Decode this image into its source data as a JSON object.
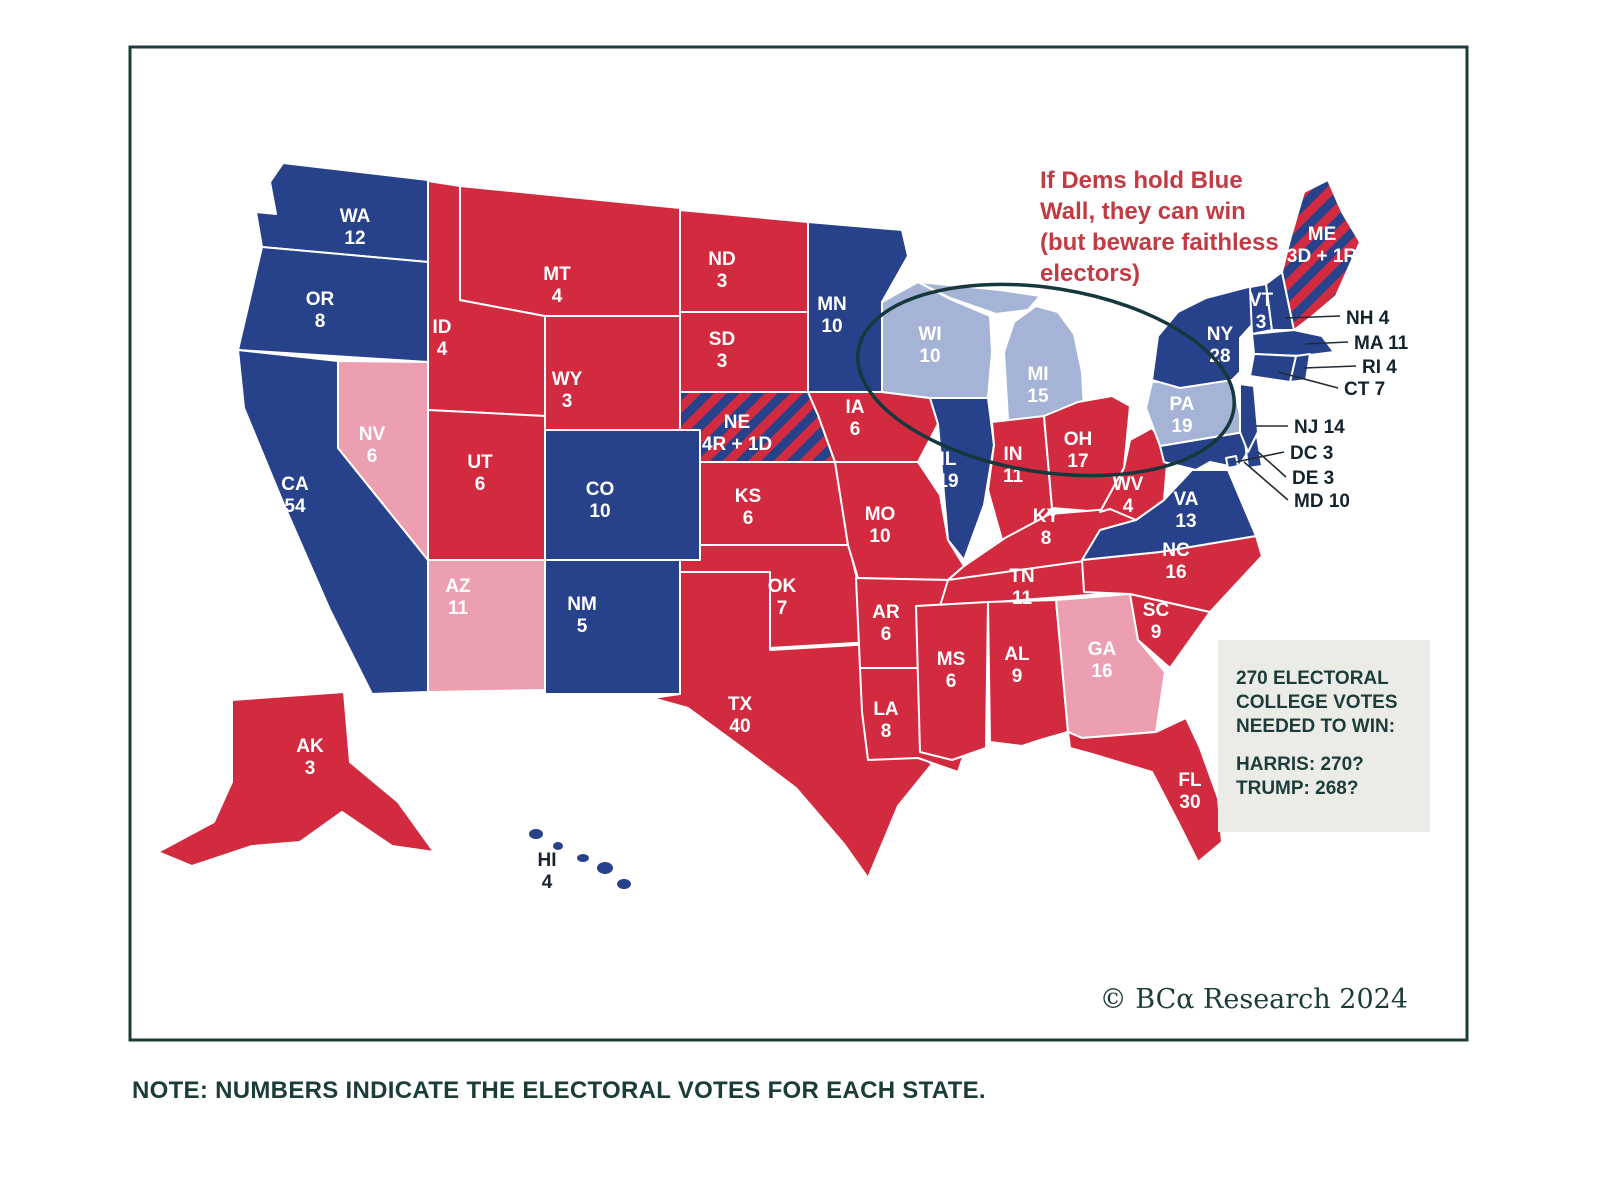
{
  "figure": {
    "note": "NOTE: NUMBERS INDICATE THE ELECTORAL VOTES FOR EACH STATE.",
    "copyright": "© BCα Research 2024"
  },
  "annotation": {
    "color": "#c23b43",
    "lines": [
      "If Dems hold Blue",
      "Wall, they can win",
      "(but beware faithless",
      "electors)"
    ]
  },
  "info_box": {
    "bg_color": "#ebece7",
    "lines": [
      "270 ELECTORAL",
      "COLLEGE VOTES",
      "NEEDED TO WIN:"
    ],
    "harris_line": "HARRIS: 270?",
    "trump_line": "TRUMP: 268?"
  },
  "legend_colors": {
    "dem": "#27428b",
    "rep": "#d22b3f",
    "lean_dem": "#a5b4d6",
    "lean_rep": "#eb9fb0",
    "frame": "#1c3c39"
  },
  "map": {
    "states": [
      {
        "id": "WA",
        "label": "WA",
        "votes": "12",
        "group": "dem"
      },
      {
        "id": "OR",
        "label": "OR",
        "votes": "8",
        "group": "dem"
      },
      {
        "id": "CA",
        "label": "CA",
        "votes": "54",
        "group": "dem"
      },
      {
        "id": "NV",
        "label": "NV",
        "votes": "6",
        "group": "lean_rep"
      },
      {
        "id": "ID",
        "label": "ID",
        "votes": "4",
        "group": "rep"
      },
      {
        "id": "MT",
        "label": "MT",
        "votes": "4",
        "group": "rep"
      },
      {
        "id": "WY",
        "label": "WY",
        "votes": "3",
        "group": "rep"
      },
      {
        "id": "UT",
        "label": "UT",
        "votes": "6",
        "group": "rep"
      },
      {
        "id": "CO",
        "label": "CO",
        "votes": "10",
        "group": "dem"
      },
      {
        "id": "AZ",
        "label": "AZ",
        "votes": "11",
        "group": "lean_rep"
      },
      {
        "id": "NM",
        "label": "NM",
        "votes": "5",
        "group": "dem"
      },
      {
        "id": "ND",
        "label": "ND",
        "votes": "3",
        "group": "rep"
      },
      {
        "id": "SD",
        "label": "SD",
        "votes": "3",
        "group": "rep"
      },
      {
        "id": "NE",
        "label": "NE",
        "votes": "4R + 1D",
        "group": "split"
      },
      {
        "id": "KS",
        "label": "KS",
        "votes": "6",
        "group": "rep"
      },
      {
        "id": "OK",
        "label": "OK",
        "votes": "7",
        "group": "rep"
      },
      {
        "id": "TX",
        "label": "TX",
        "votes": "40",
        "group": "rep"
      },
      {
        "id": "MN",
        "label": "MN",
        "votes": "10",
        "group": "dem"
      },
      {
        "id": "IA",
        "label": "IA",
        "votes": "6",
        "group": "rep"
      },
      {
        "id": "MO",
        "label": "MO",
        "votes": "10",
        "group": "rep"
      },
      {
        "id": "AR",
        "label": "AR",
        "votes": "6",
        "group": "rep"
      },
      {
        "id": "LA",
        "label": "LA",
        "votes": "8",
        "group": "rep"
      },
      {
        "id": "WI",
        "label": "WI",
        "votes": "10",
        "group": "lean_dem"
      },
      {
        "id": "MI",
        "label": "MI",
        "votes": "15",
        "group": "lean_dem"
      },
      {
        "id": "IL",
        "label": "IL",
        "votes": "19",
        "group": "dem"
      },
      {
        "id": "IN",
        "label": "IN",
        "votes": "11",
        "group": "rep"
      },
      {
        "id": "OH",
        "label": "OH",
        "votes": "17",
        "group": "rep"
      },
      {
        "id": "KY",
        "label": "KY",
        "votes": "8",
        "group": "rep"
      },
      {
        "id": "TN",
        "label": "TN",
        "votes": "11",
        "group": "rep"
      },
      {
        "id": "MS",
        "label": "MS",
        "votes": "6",
        "group": "rep"
      },
      {
        "id": "AL",
        "label": "AL",
        "votes": "9",
        "group": "rep"
      },
      {
        "id": "GA",
        "label": "GA",
        "votes": "16",
        "group": "lean_rep"
      },
      {
        "id": "FL",
        "label": "FL",
        "votes": "30",
        "group": "rep"
      },
      {
        "id": "SC",
        "label": "SC",
        "votes": "9",
        "group": "rep"
      },
      {
        "id": "NC",
        "label": "NC",
        "votes": "16",
        "group": "rep"
      },
      {
        "id": "VA",
        "label": "VA",
        "votes": "13",
        "group": "dem"
      },
      {
        "id": "WV",
        "label": "WV",
        "votes": "4",
        "group": "rep"
      },
      {
        "id": "MD",
        "label": "MD",
        "votes": "10",
        "group": "dem"
      },
      {
        "id": "DE",
        "label": "DE",
        "votes": "3",
        "group": "dem"
      },
      {
        "id": "DC",
        "label": "DC",
        "votes": "3",
        "group": "dem"
      },
      {
        "id": "PA",
        "label": "PA",
        "votes": "19",
        "group": "lean_dem"
      },
      {
        "id": "NJ",
        "label": "NJ",
        "votes": "14",
        "group": "dem"
      },
      {
        "id": "NY",
        "label": "NY",
        "votes": "28",
        "group": "dem"
      },
      {
        "id": "VT",
        "label": "VT",
        "votes": "3",
        "group": "dem"
      },
      {
        "id": "NH",
        "label": "NH",
        "votes": "4",
        "group": "dem"
      },
      {
        "id": "MA",
        "label": "MA",
        "votes": "11",
        "group": "dem"
      },
      {
        "id": "RI",
        "label": "RI",
        "votes": "4",
        "group": "dem"
      },
      {
        "id": "CT",
        "label": "CT",
        "votes": "7",
        "group": "dem"
      },
      {
        "id": "ME",
        "label": "ME",
        "votes": "3D + 1R",
        "group": "split"
      },
      {
        "id": "AK",
        "label": "AK",
        "votes": "3",
        "group": "rep"
      },
      {
        "id": "HI",
        "label": "HI",
        "votes": "4",
        "group": "dem"
      }
    ]
  }
}
